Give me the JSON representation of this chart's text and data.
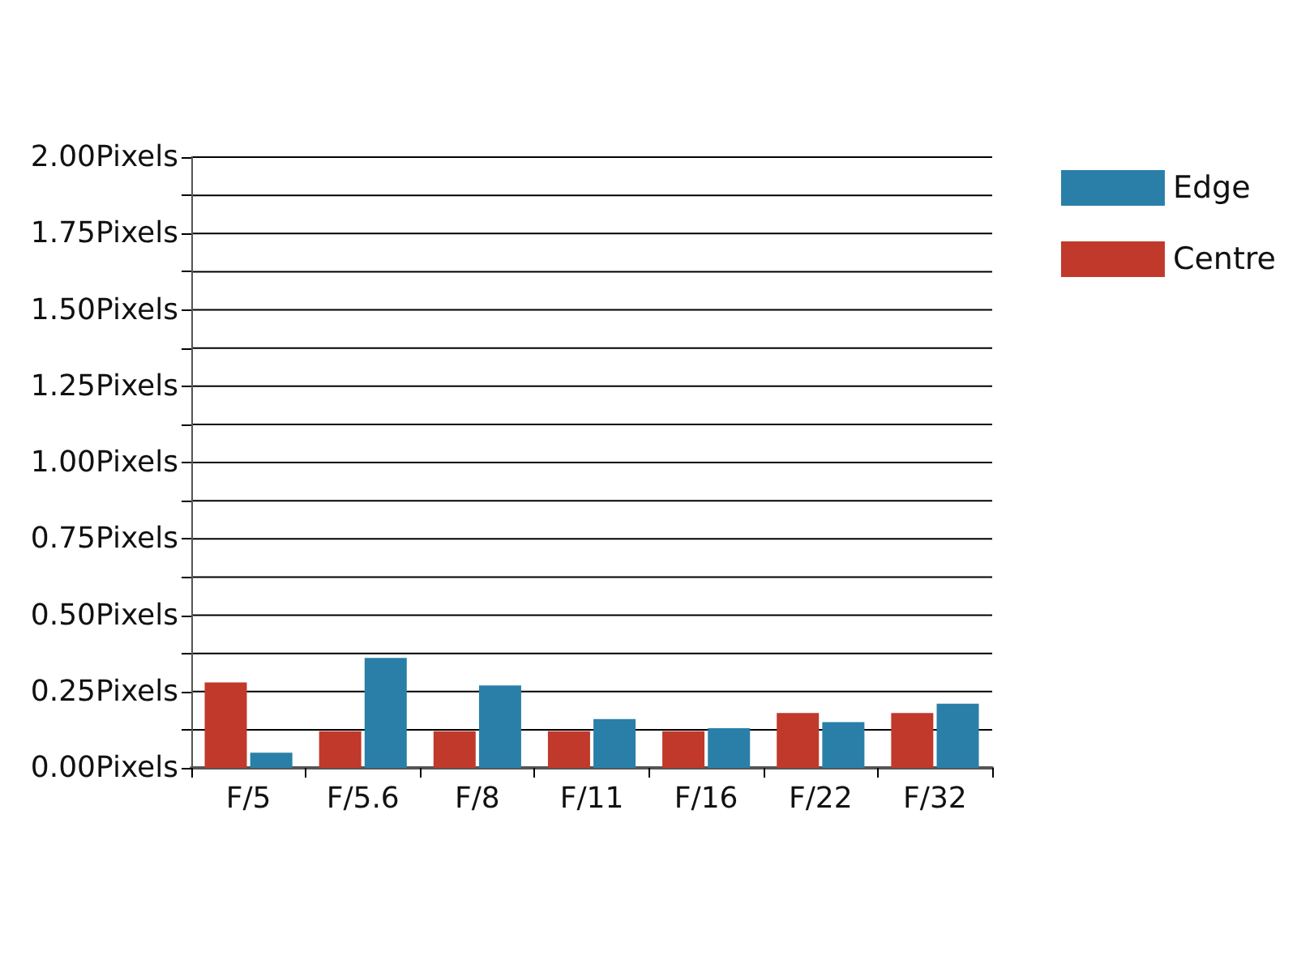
{
  "chart_data": {
    "type": "bar",
    "categories": [
      "F/5",
      "F/5.6",
      "F/8",
      "F/11",
      "F/16",
      "F/22",
      "F/32"
    ],
    "series": [
      {
        "name": "Centre",
        "color": "#c0392b",
        "values": [
          0.28,
          0.12,
          0.12,
          0.12,
          0.12,
          0.18,
          0.18
        ]
      },
      {
        "name": "Edge",
        "color": "#2a7fa8",
        "values": [
          0.05,
          0.36,
          0.27,
          0.16,
          0.13,
          0.15,
          0.21
        ]
      }
    ],
    "ylim": [
      0,
      2
    ],
    "yticks": [
      {
        "value": 0,
        "label": "0.00Pixels"
      },
      {
        "value": 0.125,
        "label": null
      },
      {
        "value": 0.25,
        "label": "0.25Pixels"
      },
      {
        "value": 0.375,
        "label": null
      },
      {
        "value": 0.5,
        "label": "0.50Pixels"
      },
      {
        "value": 0.625,
        "label": null
      },
      {
        "value": 0.75,
        "label": "0.75Pixels"
      },
      {
        "value": 0.875,
        "label": null
      },
      {
        "value": 1,
        "label": "1.00Pixels"
      },
      {
        "value": 1.125,
        "label": null
      },
      {
        "value": 1.25,
        "label": "1.25Pixels"
      },
      {
        "value": 1.375,
        "label": null
      },
      {
        "value": 1.5,
        "label": "1.50Pixels"
      },
      {
        "value": 1.625,
        "label": null
      },
      {
        "value": 1.75,
        "label": "1.75Pixels"
      },
      {
        "value": 1.875,
        "label": null
      },
      {
        "value": 2,
        "label": "2.00Pixels"
      }
    ],
    "grid": true,
    "legend": "top right"
  }
}
